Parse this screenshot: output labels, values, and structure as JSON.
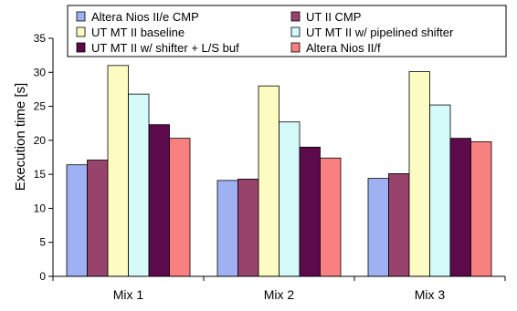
{
  "chart_data": {
    "type": "bar",
    "title": "",
    "xlabel": "",
    "ylabel": "Execution time [s]",
    "ylim": [
      0,
      35
    ],
    "yticks": [
      0,
      5,
      10,
      15,
      20,
      25,
      30,
      35
    ],
    "grid": false,
    "legend_position": "top",
    "categories": [
      "Mix 1",
      "Mix 2",
      "Mix 3"
    ],
    "series": [
      {
        "name": "Altera Nios II/e CMP",
        "color": "#9fb1f2",
        "values": [
          16.4,
          14.1,
          14.4
        ]
      },
      {
        "name": "UT II CMP",
        "color": "#98436b",
        "values": [
          17.1,
          14.3,
          15.1
        ]
      },
      {
        "name": "UT MT II baseline",
        "color": "#fbfbc2",
        "values": [
          31.0,
          28.0,
          30.1
        ]
      },
      {
        "name": "UT MT II w/ pipelined shifter",
        "color": "#d4fafa",
        "values": [
          26.8,
          22.7,
          25.2
        ]
      },
      {
        "name": "UT MT II w/ shifter + L/S buf",
        "color": "#5c0a4c",
        "values": [
          22.3,
          19.0,
          20.3
        ]
      },
      {
        "name": "Altera Nios II/f",
        "color": "#f88080",
        "values": [
          20.3,
          17.4,
          19.8
        ]
      }
    ]
  }
}
